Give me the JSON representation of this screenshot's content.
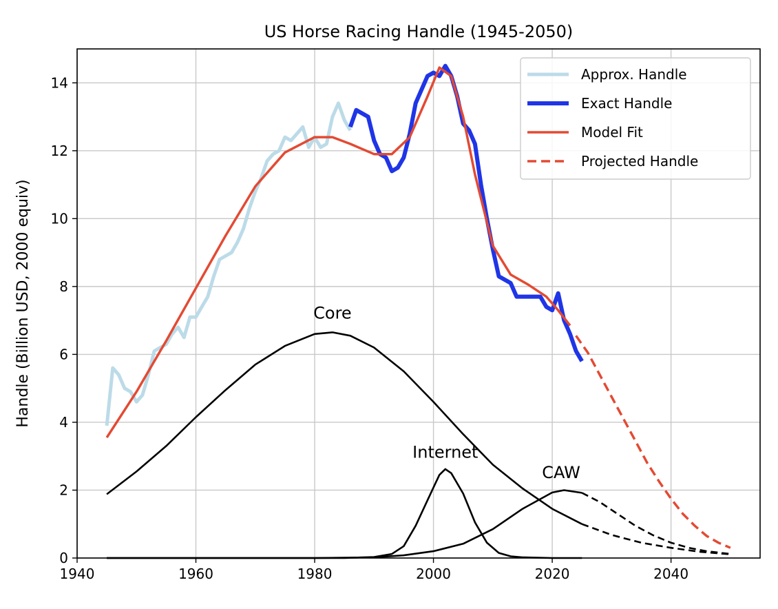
{
  "chart_data": {
    "type": "line",
    "title": "US Horse Racing Handle (1945-2050)",
    "xlabel": "",
    "ylabel": "Handle (Billion USD, 2000 equiv)",
    "xlim": [
      1940,
      2055
    ],
    "ylim": [
      0,
      15
    ],
    "xticks": [
      1940,
      1960,
      1980,
      2000,
      2020,
      2040
    ],
    "yticks": [
      0,
      2,
      4,
      6,
      8,
      10,
      12,
      14
    ],
    "grid": true,
    "legend_position": "top-right",
    "series": [
      {
        "name": "Approx. Handle",
        "color": "#bcdbe8",
        "style": "solid",
        "x": [
          1945,
          1946,
          1947,
          1948,
          1949,
          1950,
          1951,
          1952,
          1953,
          1954,
          1955,
          1956,
          1957,
          1958,
          1959,
          1960,
          1961,
          1962,
          1963,
          1964,
          1965,
          1966,
          1967,
          1968,
          1969,
          1970,
          1971,
          1972,
          1973,
          1974,
          1975,
          1976,
          1977,
          1978,
          1979,
          1980,
          1981,
          1982,
          1983,
          1984,
          1985,
          1986
        ],
        "values": [
          3.9,
          5.6,
          5.4,
          5.0,
          4.9,
          4.6,
          4.8,
          5.4,
          6.1,
          6.2,
          6.3,
          6.6,
          6.8,
          6.5,
          7.1,
          7.1,
          7.4,
          7.7,
          8.3,
          8.8,
          8.9,
          9.0,
          9.3,
          9.7,
          10.3,
          10.8,
          11.2,
          11.7,
          11.9,
          12.0,
          12.4,
          12.3,
          12.5,
          12.7,
          12.1,
          12.4,
          12.1,
          12.2,
          13.0,
          13.4,
          12.9,
          12.6
        ]
      },
      {
        "name": "Exact Handle",
        "color": "#1f35e6",
        "style": "solid",
        "x": [
          1986,
          1987,
          1988,
          1989,
          1990,
          1991,
          1992,
          1993,
          1994,
          1995,
          1996,
          1997,
          1998,
          1999,
          2000,
          2001,
          2002,
          2003,
          2004,
          2005,
          2006,
          2007,
          2008,
          2009,
          2010,
          2011,
          2012,
          2013,
          2014,
          2015,
          2016,
          2017,
          2018,
          2019,
          2020,
          2021,
          2022,
          2023,
          2024,
          2025
        ],
        "values": [
          12.7,
          13.2,
          13.1,
          13.0,
          12.3,
          11.9,
          11.8,
          11.4,
          11.5,
          11.8,
          12.5,
          13.4,
          13.8,
          14.2,
          14.3,
          14.2,
          14.5,
          14.2,
          13.6,
          12.8,
          12.6,
          12.2,
          11.0,
          10.0,
          9.1,
          8.3,
          8.2,
          8.1,
          7.7,
          7.7,
          7.7,
          7.7,
          7.7,
          7.4,
          7.3,
          7.8,
          7.0,
          6.6,
          6.1,
          5.8
        ]
      },
      {
        "name": "Model Fit",
        "color": "#e34a33",
        "style": "solid",
        "x": [
          1945,
          1950,
          1955,
          1960,
          1965,
          1970,
          1975,
          1980,
          1983,
          1986,
          1990,
          1993,
          1996,
          1999,
          2001,
          2003,
          2005,
          2007,
          2010,
          2013,
          2016,
          2019,
          2021,
          2023
        ],
        "values": [
          3.55,
          4.9,
          6.4,
          7.95,
          9.5,
          10.95,
          11.95,
          12.4,
          12.4,
          12.2,
          11.9,
          11.9,
          12.4,
          13.6,
          14.45,
          14.2,
          13.0,
          11.3,
          9.2,
          8.35,
          8.05,
          7.7,
          7.3,
          6.85
        ]
      },
      {
        "name": "Projected Handle",
        "color": "#e34a33",
        "style": "dashed",
        "x": [
          2024,
          2026,
          2028,
          2030,
          2032,
          2034,
          2036,
          2038,
          2040,
          2042,
          2044,
          2046,
          2048,
          2050
        ],
        "values": [
          6.55,
          6.05,
          5.4,
          4.75,
          4.1,
          3.45,
          2.8,
          2.25,
          1.75,
          1.3,
          0.95,
          0.65,
          0.45,
          0.3
        ]
      },
      {
        "name": "Core",
        "color": "#000000",
        "style": "solid",
        "x": [
          1945,
          1950,
          1955,
          1960,
          1965,
          1970,
          1975,
          1980,
          1983,
          1986,
          1990,
          1995,
          2000,
          2005,
          2010,
          2015,
          2020,
          2025
        ],
        "values": [
          1.88,
          2.55,
          3.3,
          4.15,
          4.95,
          5.7,
          6.25,
          6.6,
          6.65,
          6.55,
          6.2,
          5.5,
          4.6,
          3.65,
          2.75,
          2.05,
          1.45,
          1.0
        ]
      },
      {
        "name": "Core projected",
        "color": "#000000",
        "style": "dashed",
        "x": [
          2025,
          2030,
          2035,
          2040,
          2045,
          2050
        ],
        "values": [
          1.0,
          0.68,
          0.45,
          0.3,
          0.18,
          0.11
        ]
      },
      {
        "name": "Internet",
        "color": "#000000",
        "style": "solid",
        "x": [
          1945,
          1985,
          1990,
          1993,
          1995,
          1997,
          1999,
          2001,
          2002,
          2003,
          2005,
          2007,
          2009,
          2011,
          2013,
          2015,
          2020,
          2025
        ],
        "values": [
          0,
          0,
          0.03,
          0.12,
          0.35,
          0.95,
          1.7,
          2.45,
          2.62,
          2.5,
          1.9,
          1.05,
          0.45,
          0.15,
          0.05,
          0.02,
          0,
          0
        ]
      },
      {
        "name": "CAW",
        "color": "#000000",
        "style": "solid",
        "x": [
          1945,
          1980,
          1990,
          1995,
          2000,
          2005,
          2010,
          2015,
          2020,
          2022,
          2025
        ],
        "values": [
          0,
          0,
          0.02,
          0.08,
          0.2,
          0.42,
          0.85,
          1.45,
          1.93,
          2.0,
          1.92
        ]
      },
      {
        "name": "CAW projected",
        "color": "#000000",
        "style": "dashed",
        "x": [
          2025,
          2028,
          2031,
          2034,
          2037,
          2040,
          2043,
          2046,
          2050
        ],
        "values": [
          1.92,
          1.65,
          1.3,
          0.95,
          0.67,
          0.45,
          0.3,
          0.2,
          0.12
        ]
      }
    ],
    "annotations": [
      {
        "text": "Core",
        "x": 1983,
        "y": 7.05
      },
      {
        "text": "Internet",
        "x": 2002,
        "y": 2.95
      },
      {
        "text": "CAW",
        "x": 2021.5,
        "y": 2.35
      }
    ],
    "legend": [
      {
        "label": "Approx. Handle",
        "color": "#bcdbe8",
        "style": "solid",
        "width": 5
      },
      {
        "label": "Exact Handle",
        "color": "#1f35e6",
        "style": "solid",
        "width": 6
      },
      {
        "label": "Model Fit",
        "color": "#e34a33",
        "style": "solid",
        "width": 3.5
      },
      {
        "label": "Projected Handle",
        "color": "#e34a33",
        "style": "dashed",
        "width": 3.5
      }
    ]
  }
}
